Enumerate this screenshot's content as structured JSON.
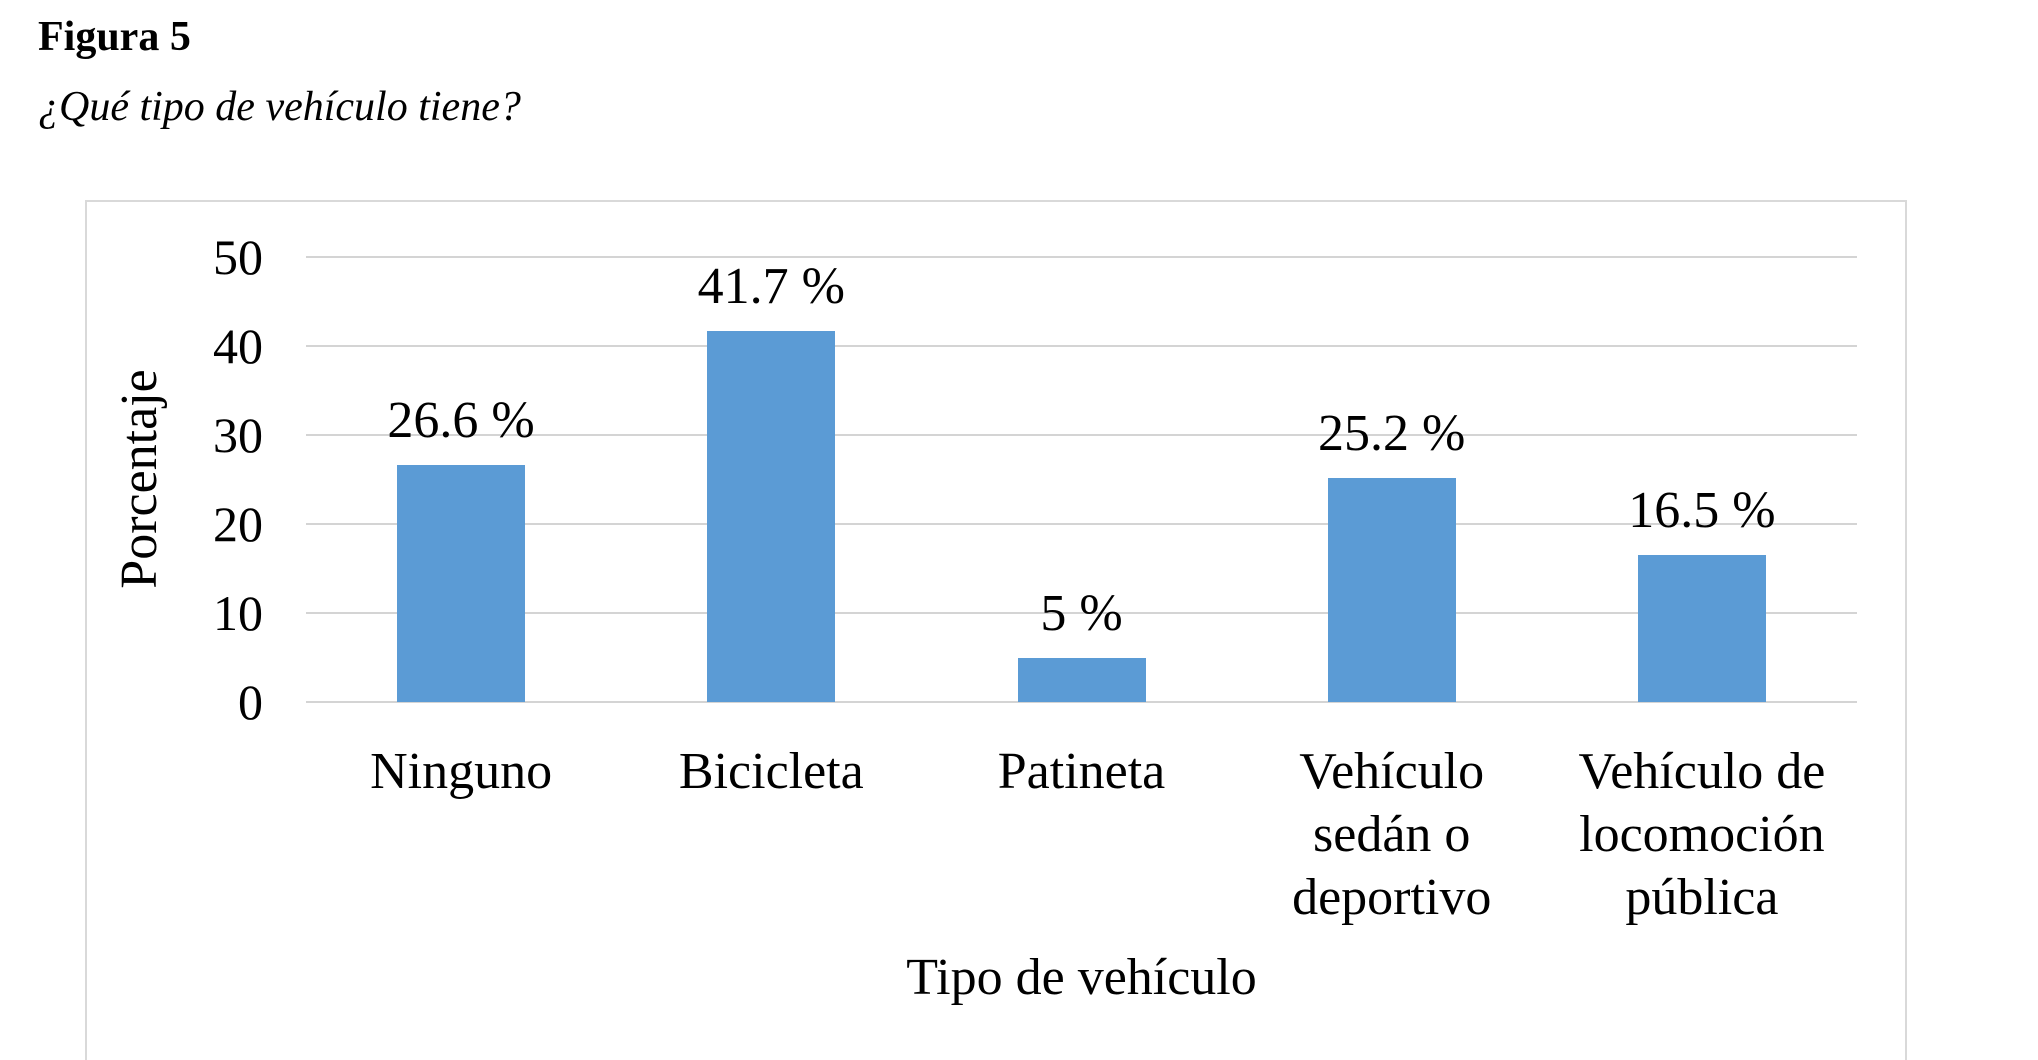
{
  "document": {
    "figure_label": "Figura 5",
    "figure_caption": "¿Qué tipo de vehículo tiene?"
  },
  "chart_data": {
    "type": "bar",
    "title": "",
    "categories": [
      "Ninguno",
      "Bicicleta",
      "Patineta",
      "Vehículo sedán o deportivo",
      "Vehículo de locomoción pública"
    ],
    "category_label_lines": [
      [
        "Ninguno"
      ],
      [
        "Bicicleta"
      ],
      [
        "Patineta"
      ],
      [
        "Vehículo",
        "sedán o",
        "deportivo"
      ],
      [
        "Vehículo de",
        "locomoción",
        "pública"
      ]
    ],
    "values": [
      26.6,
      41.7,
      5,
      25.2,
      16.5
    ],
    "data_labels": [
      "26.6 %",
      "41.7 %",
      "5 %",
      "25.2 %",
      "16.5 %"
    ],
    "xlabel": "Tipo de vehículo",
    "ylabel": "Porcentaje",
    "ylim": [
      0,
      50
    ],
    "yticks": [
      0,
      10,
      20,
      30,
      40,
      50
    ],
    "grid": true,
    "legend": false,
    "bar_color": "#5b9bd5",
    "gridline_color": "#d4d4d4",
    "frame_border_color": "#d9d9d9",
    "text_color": "#000000"
  }
}
